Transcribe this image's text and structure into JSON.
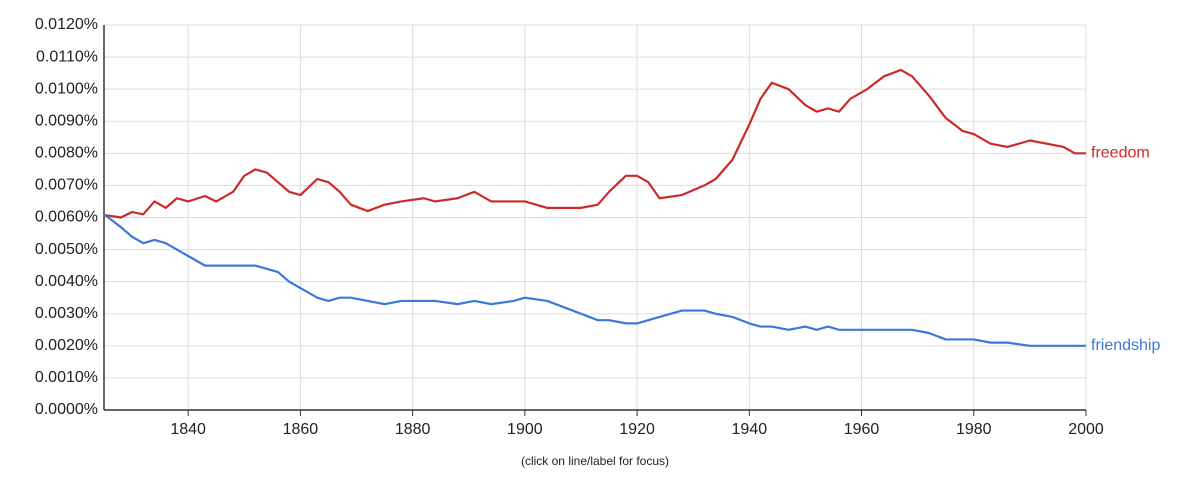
{
  "chart_data": {
    "type": "line",
    "annotation": "(click on line/label for focus)",
    "x": [
      1825,
      1828,
      1830,
      1832,
      1834,
      1836,
      1838,
      1840,
      1843,
      1845,
      1848,
      1850,
      1852,
      1854,
      1856,
      1858,
      1860,
      1863,
      1865,
      1867,
      1869,
      1872,
      1875,
      1878,
      1882,
      1884,
      1888,
      1891,
      1894,
      1898,
      1900,
      1904,
      1910,
      1913,
      1915,
      1918,
      1920,
      1922,
      1924,
      1928,
      1932,
      1934,
      1937,
      1940,
      1942,
      1944,
      1947,
      1950,
      1952,
      1954,
      1956,
      1958,
      1961,
      1964,
      1967,
      1969,
      1972,
      1975,
      1978,
      1980,
      1983,
      1986,
      1990,
      1993,
      1996,
      1998,
      2000
    ],
    "series": [
      {
        "name": "freedom",
        "color": "#cc2a2a",
        "values": [
          0.00608,
          0.006,
          0.00617,
          0.0061,
          0.0065,
          0.0063,
          0.0066,
          0.0065,
          0.00667,
          0.0065,
          0.0068,
          0.0073,
          0.0075,
          0.0074,
          0.0071,
          0.0068,
          0.0067,
          0.0072,
          0.0071,
          0.0068,
          0.0064,
          0.0062,
          0.0064,
          0.0065,
          0.0066,
          0.0065,
          0.0066,
          0.0068,
          0.0065,
          0.0065,
          0.0065,
          0.0063,
          0.0063,
          0.0064,
          0.0068,
          0.0073,
          0.0073,
          0.0071,
          0.0066,
          0.0067,
          0.007,
          0.0072,
          0.0078,
          0.0089,
          0.0097,
          0.0102,
          0.01,
          0.0095,
          0.0093,
          0.0094,
          0.0093,
          0.0097,
          0.01,
          0.0104,
          0.0106,
          0.0104,
          0.0098,
          0.0091,
          0.0087,
          0.0086,
          0.0083,
          0.0082,
          0.0084,
          0.0083,
          0.0082,
          0.008,
          0.008
        ]
      },
      {
        "name": "friendship",
        "color": "#3c78d8",
        "values": [
          0.0061,
          0.0057,
          0.0054,
          0.0052,
          0.0053,
          0.0052,
          0.005,
          0.0048,
          0.0045,
          0.0045,
          0.0045,
          0.0045,
          0.0045,
          0.0044,
          0.0043,
          0.004,
          0.0038,
          0.0035,
          0.0034,
          0.0035,
          0.0035,
          0.0034,
          0.0033,
          0.0034,
          0.0034,
          0.0034,
          0.0033,
          0.0034,
          0.0033,
          0.0034,
          0.0035,
          0.0034,
          0.003,
          0.0028,
          0.0028,
          0.0027,
          0.0027,
          0.0028,
          0.0029,
          0.0031,
          0.0031,
          0.003,
          0.0029,
          0.0027,
          0.0026,
          0.0026,
          0.0025,
          0.0026,
          0.0025,
          0.0026,
          0.0025,
          0.0025,
          0.0025,
          0.0025,
          0.0025,
          0.0025,
          0.0024,
          0.0022,
          0.0022,
          0.0022,
          0.0021,
          0.0021,
          0.002,
          0.002,
          0.002,
          0.002,
          0.002
        ]
      }
    ],
    "xlim": [
      1825,
      2000
    ],
    "xticks": [
      1840,
      1860,
      1880,
      1900,
      1920,
      1940,
      1960,
      1980,
      2000
    ],
    "ylim": [
      0,
      0.012
    ],
    "yticks": [
      {
        "value": 0,
        "label": "0.0000%"
      },
      {
        "value": 0.001,
        "label": "0.0010%"
      },
      {
        "value": 0.002,
        "label": "0.0020%"
      },
      {
        "value": 0.003,
        "label": "0.0030%"
      },
      {
        "value": 0.004,
        "label": "0.0040%"
      },
      {
        "value": 0.005,
        "label": "0.0050%"
      },
      {
        "value": 0.006,
        "label": "0.0060%"
      },
      {
        "value": 0.007,
        "label": "0.0070%"
      },
      {
        "value": 0.008,
        "label": "0.0080%"
      },
      {
        "value": 0.009,
        "label": "0.0090%"
      },
      {
        "value": 0.01,
        "label": "0.0100%"
      },
      {
        "value": 0.011,
        "label": "0.0110%"
      },
      {
        "value": 0.012,
        "label": "0.0120%"
      }
    ],
    "grid": true
  }
}
